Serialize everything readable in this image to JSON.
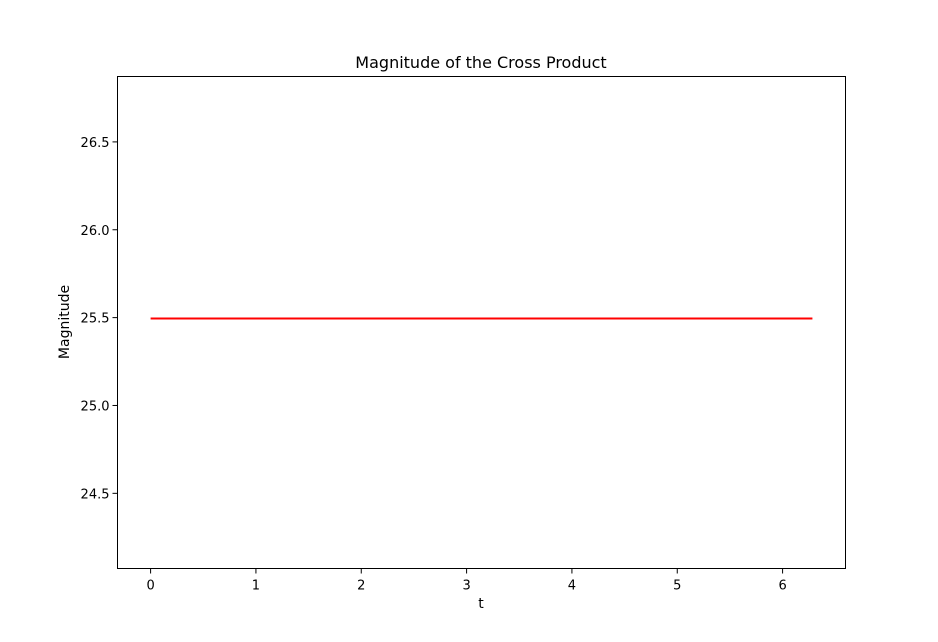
{
  "chart_data": {
    "type": "line",
    "title": "Magnitude of the Cross Product",
    "xlabel": "t",
    "ylabel": "Magnitude",
    "xlim": [
      -0.3142,
      6.5973
    ],
    "ylim": [
      24.0722,
      26.8722
    ],
    "xticks": [
      0,
      1,
      2,
      3,
      4,
      5,
      6
    ],
    "xtick_labels": [
      "0",
      "1",
      "2",
      "3",
      "4",
      "5",
      "6"
    ],
    "yticks": [
      24.5,
      25.0,
      25.5,
      26.0,
      26.5
    ],
    "ytick_labels": [
      "24.5",
      "25.0",
      "25.5",
      "26.0",
      "26.5"
    ],
    "grid": false,
    "legend": "none",
    "series": [
      {
        "color": "#ff0000",
        "x": [
          0,
          6.2832
        ],
        "y": [
          25.4951,
          25.4951
        ]
      }
    ]
  }
}
